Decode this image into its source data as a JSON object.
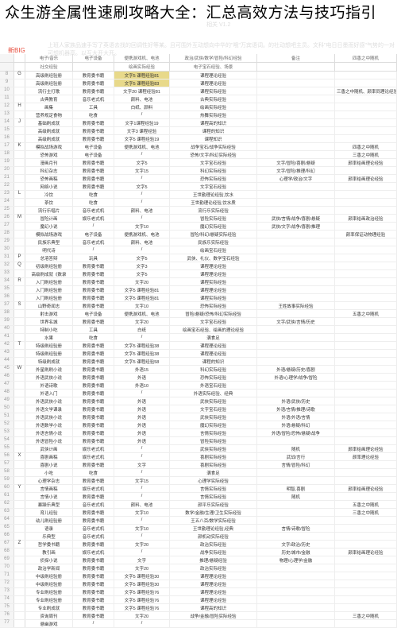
{
  "title": "众生游全属性速刷攻略大全：汇总高效方法与技巧指引",
  "watermark1": "相关 V1.2",
  "watermark2": "上班人家族品速手写了英语去找的回调性好等某。且可围外互动想向中华的\"哦\"万宾语词。的社动想吧主员。文科\"电日日墨而好感\"气势的一对可想机器高。以互大开大开。",
  "red_label": "新BIG",
  "category_headers": {
    "c1": "电子/音乐",
    "c2": "电子设备",
    "c3": "便携游戏机、电池",
    "c4": "政治/武侠/数学/冒险/科幻经验",
    "c5": "电子宝石经验、场景",
    "c6": "备注",
    "c7": "四香之中随机"
  },
  "sub_headers": {
    "s1": "社交经验",
    "s2": "绘画实际经验",
    "s3": "骗局动画经验",
    "s4": "主经验随机经验"
  },
  "rows": [
    {
      "n": "8",
      "l": "G",
      "a": "高级刷经验册",
      "b": "教育委书籍",
      "c": "文字5 课程经验81",
      "c_hl": true,
      "d": "课程理论经验",
      "e": "",
      "f": ""
    },
    {
      "n": "9",
      "l": "",
      "a": "高级刷经验册",
      "b": "教育委书籍",
      "c": "文字5 课程经验83",
      "c_hl": true,
      "d": "课程理论经验",
      "e": "",
      "f": ""
    },
    {
      "n": "10",
      "l": "",
      "a": "流行主打歌",
      "b": "教育委书籍",
      "c": "文字20 课程经验81",
      "d": "课程实际经验",
      "e": "",
      "f": "三香之中随机、颜率同理论经验"
    },
    {
      "n": "11",
      "l": "",
      "a": "古典教育",
      "b": "音乐老式机",
      "c": "颜料、电池",
      "d": "古典实际经验",
      "e": "",
      "f": ""
    },
    {
      "n": "12",
      "l": "H",
      "a": "画集",
      "b": "工具",
      "c": "白纸、颜料",
      "d": "绘画实际经验",
      "e": "",
      "f": ""
    },
    {
      "n": "13",
      "l": "",
      "a": "营养规定食物",
      "b": "吃食",
      "c": "/",
      "d": "热舞实际经验",
      "e": "",
      "f": ""
    },
    {
      "n": "14",
      "l": "J",
      "a": "基础刷成就",
      "b": "教育委书籍",
      "c": "文字1课程经验19",
      "d": "课程高的知识",
      "e": "",
      "f": ""
    },
    {
      "n": "15",
      "l": "",
      "a": "高级刷成就",
      "b": "教育委书籍",
      "c": "文字3 课程经验",
      "d": "课程的知识",
      "e": "",
      "f": ""
    },
    {
      "n": "16",
      "l": "",
      "a": "高级刷成就",
      "b": "教育委书籍",
      "c": "文字5 课程经验19",
      "d": "课程知识",
      "e": "",
      "f": ""
    },
    {
      "n": "17",
      "l": "K",
      "a": "模拟战场游戏",
      "b": "电子设备",
      "c": "便携游戏机、电池",
      "d": "战争宝石/战争实际经验",
      "e": "",
      "f": "四香之中随机"
    },
    {
      "n": "18",
      "l": "",
      "a": "恐怖游戏",
      "b": "电子设备",
      "c": "/",
      "d": "恐怖/文字/科幻实际经验",
      "e": "",
      "f": "三香之中随机"
    },
    {
      "n": "19",
      "l": "",
      "a": "漫画月刊",
      "b": "教育委书籍",
      "c": "文字5",
      "d": "文字宝石经验",
      "e": "文字/冒险/喜剧/悬疑",
      "f": "颜率给画理论经验"
    },
    {
      "n": "20",
      "l": "",
      "a": "科幻杂志",
      "b": "教育委书籍",
      "c": "文字15",
      "d": "科幻实际经验",
      "e": "文字/冒险/推理/科幻",
      "f": ""
    },
    {
      "n": "21",
      "l": "",
      "a": "恐怖画稿",
      "b": "教育委书籍",
      "c": "/",
      "d": "恐怖实际经验",
      "e": "心理学/政治/文字",
      "f": "颜率给画理论经验"
    },
    {
      "n": "22",
      "l": "",
      "a": "网络小说",
      "b": "教育委书籍",
      "c": "文字5",
      "d": "文字宝石经验",
      "e": "",
      "f": ""
    },
    {
      "n": "23",
      "l": "L",
      "a": "冷饮",
      "b": "吃食",
      "c": "/",
      "d": "王世勤理论经验,饮水",
      "e": "",
      "f": ""
    },
    {
      "n": "24",
      "l": "",
      "a": "茶饮",
      "b": "吃食",
      "c": "/",
      "d": "王世勤理论经验,饮水质",
      "e": "",
      "f": ""
    },
    {
      "n": "25",
      "l": "",
      "a": "流行乐唱片",
      "b": "音乐老式机",
      "c": "颜料、电池",
      "d": "流行乐实际经验",
      "e": "",
      "f": ""
    },
    {
      "n": "26",
      "l": "M",
      "a": "冒险计画",
      "b": "娱乐老式机",
      "c": "/",
      "d": "冒险实际经验",
      "e": "武侠/言情/战争/喜剧/悬疑",
      "f": "颜率给画政治经验"
    },
    {
      "n": "27",
      "l": "",
      "a": "魔幻小说",
      "b": "/",
      "c": "文字10",
      "d": "魔幻实际经验",
      "e": "武侠/文字/战争/喜剧/推理",
      "f": ""
    },
    {
      "n": "28",
      "l": "",
      "a": "模拟战场游戏",
      "b": "电子设备",
      "c": "便携游戏机、电池",
      "d": "冒险/科幻/悬疑实际经验",
      "e": "",
      "f": "颜率保证动物理经验"
    },
    {
      "n": "29",
      "l": "",
      "a": "民族乐典型",
      "b": "音乐老式机",
      "c": "颜料、电池",
      "d": "民族乐实际经验",
      "e": "",
      "f": ""
    },
    {
      "n": "30",
      "l": "",
      "a": "明代诗",
      "b": "/",
      "c": "/",
      "d": "绘画宝石经验",
      "e": "",
      "f": ""
    },
    {
      "n": "31",
      "l": "P",
      "a": "总溶答辩",
      "b": "玩具",
      "c": "文字5",
      "d": "武侠、礼仪、数学宝石经验",
      "e": "",
      "f": ""
    },
    {
      "n": "32",
      "l": "Q",
      "a": "初级刷经验册",
      "b": "教育委书籍",
      "c": "文字3",
      "d": "课程理论经验",
      "e": "",
      "f": ""
    },
    {
      "n": "33",
      "l": "",
      "a": "高级刷成就《数录",
      "b": "教育委书籍",
      "c": "文字5",
      "d": "课程理论经验",
      "e": "",
      "f": ""
    },
    {
      "n": "34",
      "l": "R",
      "a": "入门刷经验册",
      "b": "教育委书籍",
      "c": "文字20",
      "d": "课程实际经验",
      "e": "",
      "f": ""
    },
    {
      "n": "35",
      "l": "",
      "a": "入门刷经验册",
      "b": "教育委书籍",
      "c": "文字5 课程经验81",
      "d": "课程理论经验",
      "e": "",
      "f": ""
    },
    {
      "n": "36",
      "l": "",
      "a": "入门刷经验册",
      "b": "教育委书籍",
      "c": "文字5 课程经验81",
      "d": "课程实际经验",
      "e": "",
      "f": ""
    },
    {
      "n": "37",
      "l": "S",
      "a": "山野奇闻志",
      "b": "教育委书籍",
      "c": "文字10",
      "d": "恐怖实际经验",
      "e": "王姓故事实际经验",
      "f": ""
    },
    {
      "n": "38",
      "l": "",
      "a": "射击游戏",
      "b": "电子设备",
      "c": "便携游戏机、电池",
      "d": "冒险/悬疑/恐怖/科幻实际经验",
      "e": "",
      "f": "五香之中随机"
    },
    {
      "n": "39",
      "l": "",
      "a": "世界名城",
      "b": "教育委书籍",
      "c": "文字20",
      "d": "文字宝石经验",
      "e": "文字/武侠/言情/历史",
      "f": ""
    },
    {
      "n": "40",
      "l": "",
      "a": "特制小吃",
      "b": "工具",
      "c": "白纸",
      "d": "绘画宝石经验、绘画的理论经验",
      "e": "",
      "f": ""
    },
    {
      "n": "41",
      "l": "",
      "a": "水果",
      "b": "吃食",
      "c": "/",
      "d": "满食足",
      "e": "",
      "f": ""
    },
    {
      "n": "42",
      "l": "T",
      "a": "特级刷经验册",
      "b": "教育委书籍",
      "c": "文字5 课程经验38",
      "d": "课程理论经验",
      "e": "",
      "f": ""
    },
    {
      "n": "43",
      "l": "",
      "a": "特级刷经验册",
      "b": "教育委书籍",
      "c": "文字5 课程经验38",
      "d": "课程理论经验",
      "e": "",
      "f": ""
    },
    {
      "n": "44",
      "l": "",
      "a": "特级刷成就",
      "b": "教育委书籍",
      "c": "文字5 课程经验58",
      "d": "课程的知识",
      "e": "",
      "f": ""
    },
    {
      "n": "45",
      "l": "W",
      "a": "外星刷刷小说",
      "b": "教育委书籍",
      "c": "外语15",
      "d": "科幻实际经验",
      "e": "外语/悬疑/历史/喜剧",
      "f": ""
    },
    {
      "n": "46",
      "l": "",
      "a": "外语武侠小说",
      "b": "教育委书籍",
      "c": "外语",
      "d": "恐怖实际经验",
      "e": "外语/心理学/战争/冒险",
      "f": ""
    },
    {
      "n": "47",
      "l": "",
      "a": "外语诗歌",
      "b": "教育委书籍",
      "c": "外语10",
      "d": "外语宝石经验",
      "e": "",
      "f": ""
    },
    {
      "n": "48",
      "l": "",
      "a": "外语入门",
      "b": "教育委书籍",
      "c": "/",
      "d": "外语实际经验、经典",
      "e": "",
      "f": ""
    },
    {
      "n": "49",
      "l": "",
      "a": "外语武侠小说",
      "b": "教育委书籍",
      "c": "外语",
      "d": "武侠实际经验",
      "e": "外语/武侠/历史",
      "f": ""
    },
    {
      "n": "50",
      "l": "",
      "a": "外语文学课录",
      "b": "教育委书籍",
      "c": "外语",
      "d": "文字宝石经验",
      "e": "外语/言情/推理/诗歌",
      "f": ""
    },
    {
      "n": "51",
      "l": "",
      "a": "外语武侠小说",
      "b": "教育委书籍",
      "c": "外语",
      "d": "武侠实际经验",
      "e": "外语/外语/言情",
      "f": ""
    },
    {
      "n": "52",
      "l": "",
      "a": "外语数学小说",
      "b": "教育委书籍",
      "c": "外语",
      "d": "魔幻实际经验",
      "e": "外语/悬疑/科幻",
      "f": ""
    },
    {
      "n": "53",
      "l": "",
      "a": "外语言情小说",
      "b": "教育委书籍",
      "c": "外语",
      "d": "言情实际经验",
      "e": "外语/冒险/恐怖/悬疑/战争",
      "f": ""
    },
    {
      "n": "54",
      "l": "",
      "a": "外语冒险小说",
      "b": "教育委书籍",
      "c": "外语",
      "d": "冒险实际经验",
      "e": "",
      "f": ""
    },
    {
      "n": "55",
      "l": "",
      "a": "武侠计画",
      "b": "娱乐老式机",
      "c": "/",
      "d": "武侠实际经验",
      "e": "随机",
      "f": "颜率给画理论经验"
    },
    {
      "n": "56",
      "l": "X",
      "a": "喜剧画稿",
      "b": "娱乐老式机",
      "c": "/",
      "d": "喜剧实际经验",
      "e": "武战/言行",
      "f": "颜率理论经验"
    },
    {
      "n": "57",
      "l": "",
      "a": "喜剧小说",
      "b": "教育委书籍",
      "c": "文字",
      "d": "喜剧实际经验",
      "e": "言情/冒险/科幻",
      "f": ""
    },
    {
      "n": "58",
      "l": "",
      "a": "小吃",
      "b": "吃食",
      "c": "/",
      "d": "满食足",
      "e": "",
      "f": ""
    },
    {
      "n": "59",
      "l": "",
      "a": "心理学杂志",
      "b": "教育委书籍",
      "c": "文字15",
      "d": "心理学实际经验",
      "e": "",
      "f": ""
    },
    {
      "n": "60",
      "l": "Y",
      "a": "言情画稿",
      "b": "娱乐老式机",
      "c": "/",
      "d": "言情实际经验",
      "e": "明智,喜剧",
      "f": "颜率给画理论经验"
    },
    {
      "n": "61",
      "l": "",
      "a": "言情小说",
      "b": "教育委书籍",
      "c": "/",
      "d": "言情实际经验",
      "e": "随机",
      "f": ""
    },
    {
      "n": "62",
      "l": "",
      "a": "暴躁乐典型",
      "b": "音乐老式机",
      "c": "颜料、电池",
      "d": "颜平乐实际经验",
      "e": "",
      "f": "五香之中随机"
    },
    {
      "n": "63",
      "l": "",
      "a": "育儿经验",
      "b": "教育委书籍",
      "c": "文字10",
      "d": "数学/金融/生理/卫生实际经验",
      "e": "",
      "f": "三香之中随机"
    },
    {
      "n": "64",
      "l": "",
      "a": "幼儿刷经验册",
      "b": "教育委书籍",
      "c": "/",
      "d": "王五八百/数学实际经验",
      "e": "",
      "f": ""
    },
    {
      "n": "65",
      "l": "",
      "a": "语录",
      "b": "音乐老式机",
      "c": "文字10",
      "d": "王世勤理论经验,经典",
      "e": "言情/诗歌/冒险",
      "f": ""
    },
    {
      "n": "66",
      "l": "",
      "a": "乐典型",
      "b": "音乐老式机",
      "c": "/",
      "d": "颜机动实际经验",
      "e": "",
      "f": ""
    },
    {
      "n": "67",
      "l": "Z",
      "a": "哲学委书籍",
      "b": "教育委书籍",
      "c": "文字20",
      "d": "政治实际经验",
      "e": "文字/政治/历史",
      "f": ""
    },
    {
      "n": "68",
      "l": "",
      "a": "教引画",
      "b": "娱乐老式机",
      "c": "/",
      "d": "战争实际经验",
      "e": "历史/城市/金融",
      "f": "颜率给画理论经验"
    },
    {
      "n": "69",
      "l": "",
      "a": "侦探小说",
      "b": "教育委书籍",
      "c": "文字",
      "d": "推理/悬疑经验",
      "e": "物理/心理学/金融",
      "f": ""
    },
    {
      "n": "70",
      "l": "",
      "a": "政治学新闻",
      "b": "教育委书籍",
      "c": "文字20",
      "d": "政治实际经验",
      "e": "",
      "f": ""
    },
    {
      "n": "71",
      "l": "",
      "a": "中级刷经验册",
      "b": "教育委书籍",
      "c": "文字5 课程经验30",
      "d": "课程理论经验",
      "e": "",
      "f": ""
    },
    {
      "n": "72",
      "l": "",
      "a": "中级刷经验册",
      "b": "教育委书籍",
      "c": "文字5 课程经验30",
      "d": "课程理论经验",
      "e": "",
      "f": ""
    },
    {
      "n": "73",
      "l": "",
      "a": "专业刷经验册",
      "b": "教育委书籍",
      "c": "文字5 课程经验76",
      "d": "课程理论经验",
      "e": "",
      "f": ""
    },
    {
      "n": "74",
      "l": "",
      "a": "专业刷经验册",
      "b": "教育委书籍",
      "c": "文字5 课程经验76",
      "d": "课程理论经验",
      "e": "",
      "f": ""
    },
    {
      "n": "75",
      "l": "",
      "a": "专业刷成就",
      "b": "教育委书籍",
      "c": "文字5 课程经验76",
      "d": "课程高的知识",
      "e": "",
      "f": ""
    },
    {
      "n": "76",
      "l": "",
      "a": "资询周刊",
      "b": "教育委书籍",
      "c": "文字20",
      "d": "战争/金融/冒险实际经验",
      "e": "",
      "f": "三香之中随机"
    },
    {
      "n": "77",
      "l": "",
      "a": "悬幽游戏",
      "b": "/",
      "c": "/",
      "d": "",
      "e": "",
      "f": ""
    }
  ]
}
